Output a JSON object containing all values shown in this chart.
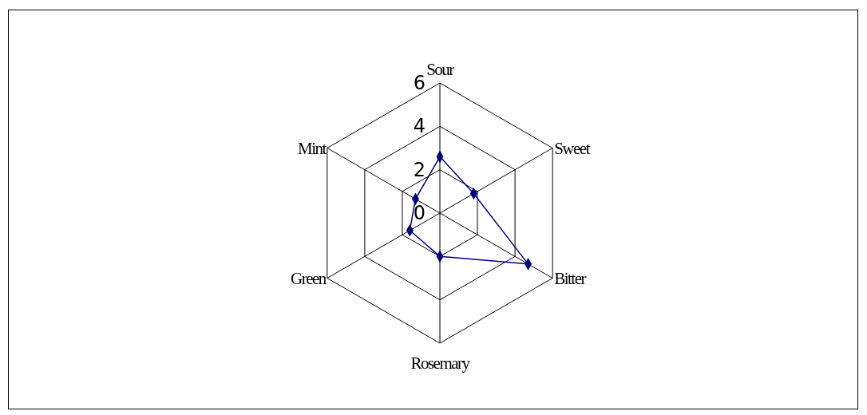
{
  "chart_data": {
    "type": "radar",
    "categories": [
      "Sour",
      "Sweet",
      "Bitter",
      "Rosemary",
      "Green",
      "Mint"
    ],
    "series": [
      {
        "color": "#000080",
        "values": [
          2.6,
          1.8,
          4.7,
          2.0,
          1.6,
          1.3
        ]
      }
    ],
    "ylim": [
      0,
      6
    ],
    "yticks": [
      0,
      2,
      4,
      6
    ],
    "grid": true,
    "marker": "diamond",
    "line_style": "solid",
    "legend": false
  }
}
